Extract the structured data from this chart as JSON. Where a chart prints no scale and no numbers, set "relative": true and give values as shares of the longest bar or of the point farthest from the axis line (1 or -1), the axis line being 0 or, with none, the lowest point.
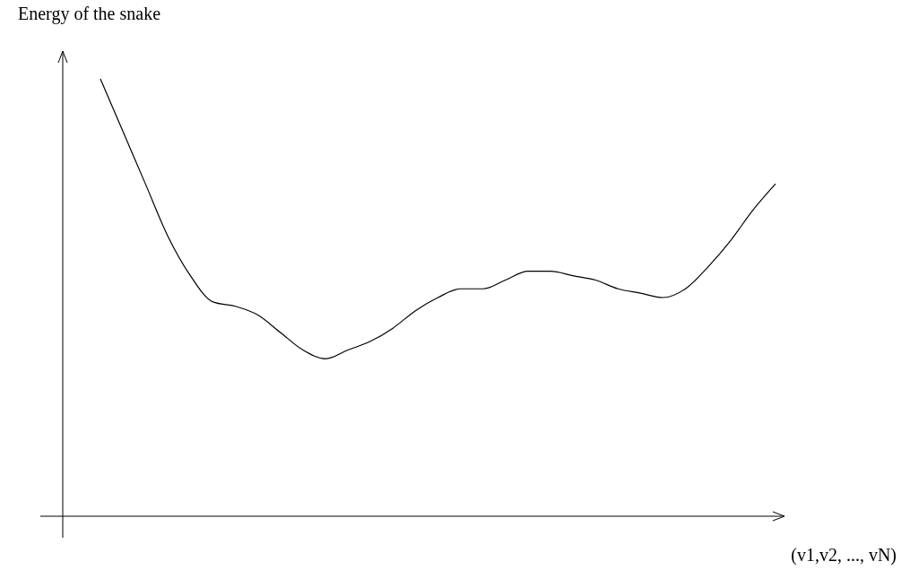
{
  "chart_data": {
    "type": "line",
    "relative": true,
    "ylabel": "Energy of the snake",
    "xlabel": "(v1,v2, ..., vN)",
    "categories": [
      null,
      null,
      null,
      null,
      null,
      null,
      null,
      null,
      null,
      null,
      null,
      null,
      null,
      null,
      null,
      null,
      null,
      null,
      null,
      null,
      null,
      null,
      null,
      null,
      null,
      null,
      null,
      null,
      null,
      null,
      null
    ],
    "series": [
      {
        "color": "#000000",
        "values": [
          1,
          0.88,
          0.76,
          0.64,
          0.55,
          0.49,
          0.48,
          0.46,
          0.42,
          0.38,
          0.36,
          0.38,
          0.4,
          0.43,
          0.47,
          0.5,
          0.52,
          0.52,
          0.54,
          0.56,
          0.56,
          0.55,
          0.54,
          0.52,
          0.51,
          0.5,
          0.52,
          0.57,
          0.63,
          0.7,
          0.76
        ]
      }
    ],
    "marker": "none",
    "line_style": "solid"
  }
}
